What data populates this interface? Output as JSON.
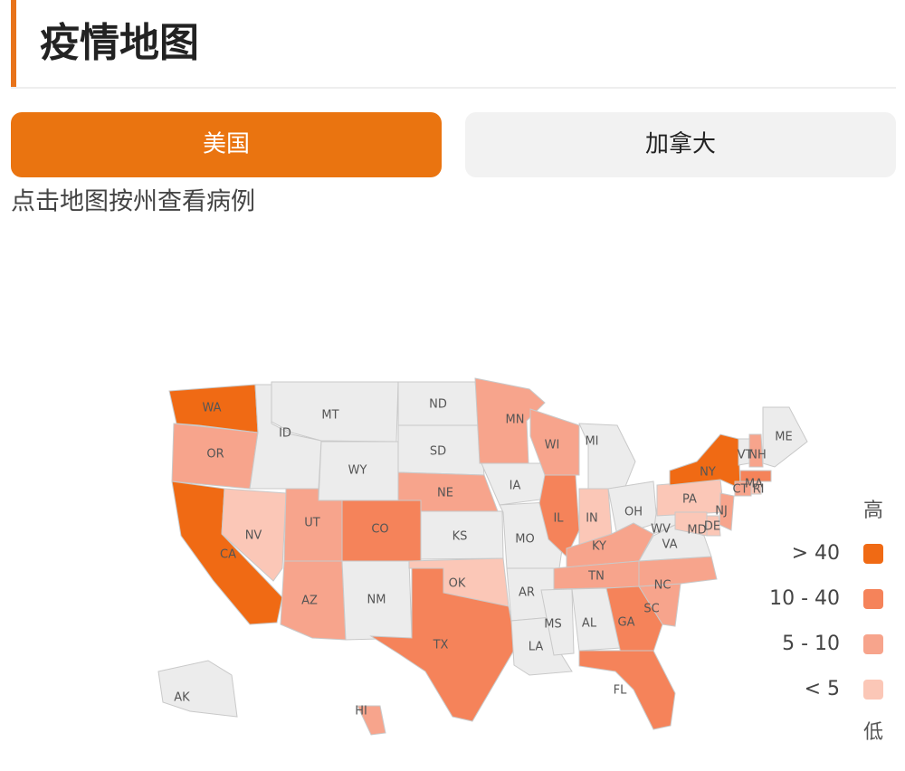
{
  "header": {
    "title": "疫情地图"
  },
  "tabs": [
    {
      "label": "美国",
      "active": true
    },
    {
      "label": "加拿大",
      "active": false
    }
  ],
  "hint": "点击地图按州查看病例",
  "map": {
    "no_data_color": "#ececec",
    "states": [
      {
        "label": "WA",
        "level": 0
      },
      {
        "label": "OR",
        "level": 2
      },
      {
        "label": "CA",
        "level": 0
      },
      {
        "label": "NV",
        "level": 3
      },
      {
        "label": "ID",
        "level": null
      },
      {
        "label": "MT",
        "level": null
      },
      {
        "label": "WY",
        "level": null
      },
      {
        "label": "UT",
        "level": 2
      },
      {
        "label": "CO",
        "level": 1
      },
      {
        "label": "AZ",
        "level": 2
      },
      {
        "label": "NM",
        "level": null
      },
      {
        "label": "ND",
        "level": null
      },
      {
        "label": "SD",
        "level": null
      },
      {
        "label": "NE",
        "level": 2
      },
      {
        "label": "KS",
        "level": null
      },
      {
        "label": "OK",
        "level": 3
      },
      {
        "label": "TX",
        "level": 1
      },
      {
        "label": "MN",
        "level": 2
      },
      {
        "label": "IA",
        "level": null
      },
      {
        "label": "MO",
        "level": null
      },
      {
        "label": "AR",
        "level": null
      },
      {
        "label": "LA",
        "level": null
      },
      {
        "label": "WI",
        "level": 2
      },
      {
        "label": "IL",
        "level": 1
      },
      {
        "label": "MI",
        "level": null
      },
      {
        "label": "IN",
        "level": 3
      },
      {
        "label": "OH",
        "level": null
      },
      {
        "label": "KY",
        "level": 2
      },
      {
        "label": "TN",
        "level": 2
      },
      {
        "label": "MS",
        "level": null
      },
      {
        "label": "AL",
        "level": null
      },
      {
        "label": "GA",
        "level": 1
      },
      {
        "label": "FL",
        "level": 1
      },
      {
        "label": "SC",
        "level": 2
      },
      {
        "label": "NC",
        "level": 2
      },
      {
        "label": "VA",
        "level": null
      },
      {
        "label": "WV",
        "level": null
      },
      {
        "label": "PA",
        "level": 3
      },
      {
        "label": "NY",
        "level": 0
      },
      {
        "label": "NJ",
        "level": 2
      },
      {
        "label": "DE",
        "level": 3
      },
      {
        "label": "MD",
        "level": 3
      },
      {
        "label": "VT",
        "level": null
      },
      {
        "label": "NH",
        "level": 2
      },
      {
        "label": "ME",
        "level": null
      },
      {
        "label": "MA",
        "level": 1
      },
      {
        "label": "CT",
        "level": 2
      },
      {
        "label": "RI",
        "level": 3
      },
      {
        "label": "AK",
        "level": null
      },
      {
        "label": "HI",
        "level": 2
      }
    ]
  },
  "legend": {
    "high": "高",
    "low": "低",
    "items": [
      {
        "label": "> 40",
        "color": "#f06a14"
      },
      {
        "label": "10 - 40",
        "color": "#f5835a"
      },
      {
        "label": "5 - 10",
        "color": "#f7a48c"
      },
      {
        "label": "< 5",
        "color": "#fbc7b7"
      }
    ]
  }
}
